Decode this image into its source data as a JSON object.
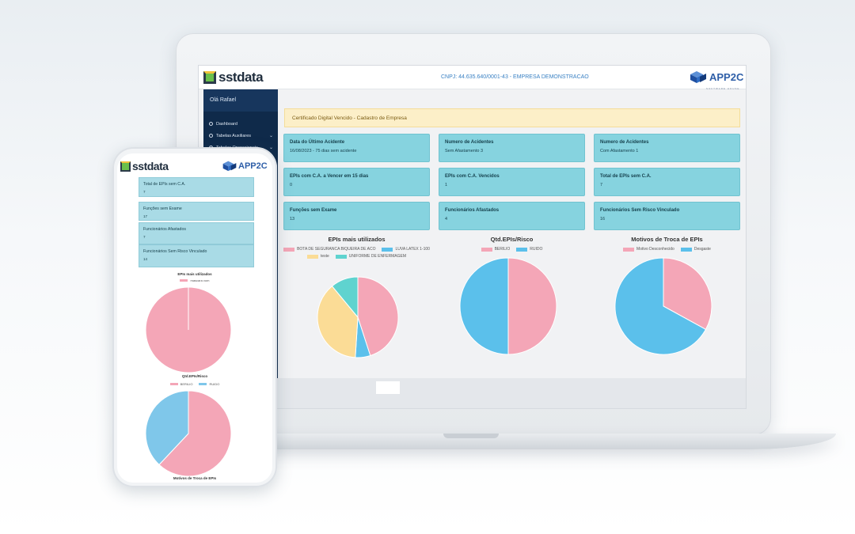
{
  "desktop": {
    "logo_text": "sstdata",
    "cnpj_text": "CNPJ: 44.635.640/0001-43 - EMPRESA DEMONSTRACAO",
    "brand_text": "APP2C",
    "brand_subtext": "SOFTWARE HOUSE",
    "greeting": "Olá Rafael",
    "sidebar_items": [
      {
        "label": "Dashboard",
        "icon": "dashboard-icon"
      },
      {
        "label": "Tabelas Auxiliares",
        "icon": "gear-icon"
      },
      {
        "label": "Tabelas Operacionais",
        "icon": "table-icon"
      }
    ],
    "alert_text": "Certificado Digital Vencido - Cadastro de Empresa",
    "cards": [
      {
        "title": "Data do Último Acidente",
        "value": "16/08/2023 - 75 dias sem acidente"
      },
      {
        "title": "Numero de Acidentes",
        "value": "Sem Afastamento 3"
      },
      {
        "title": "Numero de Acidentes",
        "value": "Com Afastamento 1"
      },
      {
        "title": "EPIs com C.A. a Vencer em 15 dias",
        "value": "0"
      },
      {
        "title": "EPIs com C.A. Vencidos",
        "value": "1"
      },
      {
        "title": "Total de EPIs sem C.A.",
        "value": "7"
      },
      {
        "title": "Funções sem Exame",
        "value": "13"
      },
      {
        "title": "Funcionários Afastados",
        "value": "4"
      },
      {
        "title": "Funcionários Sem Risco Vinculado",
        "value": "16"
      }
    ]
  },
  "phone": {
    "logo_text": "sstdata",
    "brand_text": "APP2C",
    "cards": [
      {
        "title": "Total de EPIs sem C.A.",
        "value": "7"
      },
      {
        "title": "Funções sem Exame",
        "value": "17"
      },
      {
        "title": "Funcionários Afastados",
        "value": "7"
      },
      {
        "title": "Funcionários Sem Risco Vinculado",
        "value": "14"
      }
    ],
    "chart1_title": "EPIs mais utilizados",
    "chart1_legend": "mascara vom",
    "chart2_title": "Qtd.EPIs/Risco",
    "chart2_legend": [
      "BERILIO",
      "RUIDO"
    ],
    "chart3_title": "Motivos de Troca de EPIs"
  },
  "chart_data": [
    {
      "type": "pie",
      "title": "EPIs mais utilizados",
      "categories": [
        "BOTA DE SEGURANCA BIQUEIRA DE ACO",
        "LUVA LATEX 1-100",
        "teste",
        "UNIFORME DE ENFERMAGEM"
      ],
      "values": [
        45,
        6,
        38,
        11
      ],
      "colors": [
        "#f4a6b7",
        "#5bc0eb",
        "#fbdc96",
        "#5fd3cf"
      ]
    },
    {
      "type": "pie",
      "title": "Qtd.EPIs/Risco",
      "categories": [
        "BERILIO",
        "RUIDO"
      ],
      "values": [
        50,
        50
      ],
      "colors": [
        "#f4a6b7",
        "#5bc0eb"
      ]
    },
    {
      "type": "pie",
      "title": "Motivos de Troca de EPIs",
      "categories": [
        "Motivo Desconhecido",
        "Desgaste"
      ],
      "values": [
        33,
        67
      ],
      "colors": [
        "#f4a6b7",
        "#5bc0eb"
      ]
    },
    {
      "type": "pie",
      "title": "EPIs mais utilizados",
      "categories": [
        "mascara vom"
      ],
      "values": [
        100
      ],
      "colors": [
        "#f4a6b7"
      ]
    },
    {
      "type": "pie",
      "title": "Qtd.EPIs/Risco",
      "categories": [
        "BERILIO",
        "RUIDO"
      ],
      "values": [
        62,
        38
      ],
      "colors": [
        "#f4a6b7",
        "#7fc7ea"
      ]
    }
  ]
}
